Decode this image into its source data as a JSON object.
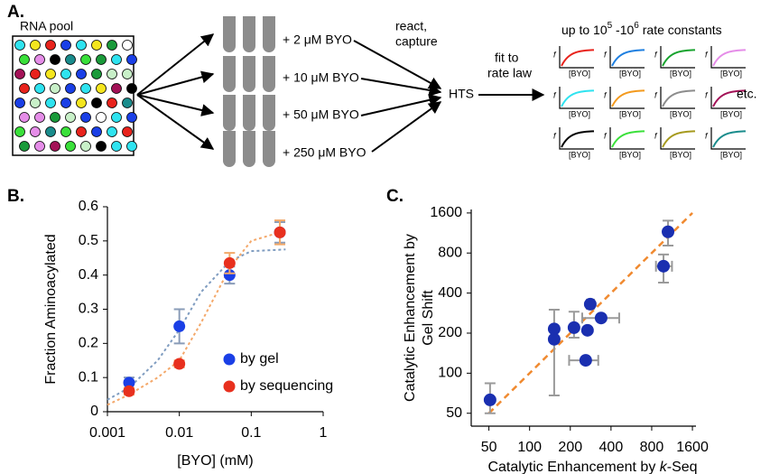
{
  "panel_a": {
    "label": "A.",
    "pool_label": "RNA pool",
    "conditions": [
      "+ 2 μM  BYO",
      "+ 10 μM  BYO",
      "+ 50 μM  BYO",
      "+ 250 μM  BYO"
    ],
    "react": [
      "react,",
      "capture"
    ],
    "hts": "HTS",
    "fit": [
      "fit to",
      "rate law"
    ],
    "headline": [
      "up to 10",
      "5",
      " -10",
      "6",
      " rate constants"
    ],
    "curve_axis_y": "f",
    "curve_axis_x": "[BYO]",
    "curve_colors": [
      "#e8231c",
      "#1e7fe0",
      "#17a32e",
      "#e58de8",
      "#2fe3f0",
      "#f39a1e",
      "#8c8c8c",
      "#a31257",
      "#000000",
      "#3ae03a",
      "#a69a1e",
      "#1a8c8c"
    ],
    "etc": "etc."
  },
  "chart_data": [
    {
      "type": "scatter",
      "panel_label": "B.",
      "x_label": "[BYO] (mM)",
      "y_label": "Fraction Aminoacylated",
      "xscale": "log",
      "xlim": [
        0.001,
        1
      ],
      "xticks": [
        0.001,
        0.01,
        0.1,
        1
      ],
      "ylim": [
        0,
        0.6
      ],
      "yticks": [
        0,
        0.1,
        0.2,
        0.3,
        0.4,
        0.5,
        0.6
      ],
      "legend": "lower-right",
      "series": [
        {
          "name": "by gel",
          "color": "#1a3fe6",
          "error_color": "#8a9cb8",
          "x": [
            0.002,
            0.01,
            0.05,
            0.25
          ],
          "values": [
            0.085,
            0.25,
            0.4,
            0.525
          ],
          "errors": [
            0.015,
            0.05,
            0.025,
            0.03
          ]
        },
        {
          "name": "by sequencing",
          "color": "#e8301e",
          "error_color": "#f2a868",
          "x": [
            0.002,
            0.01,
            0.05,
            0.25
          ],
          "values": [
            0.06,
            0.14,
            0.435,
            0.525
          ],
          "errors": [
            0.01,
            0.01,
            0.03,
            0.035
          ]
        }
      ],
      "fits": [
        {
          "color": "#7f9cc0",
          "x": [
            0.001,
            0.002,
            0.005,
            0.01,
            0.02,
            0.05,
            0.1,
            0.3
          ],
          "values": [
            0.035,
            0.07,
            0.15,
            0.24,
            0.35,
            0.44,
            0.47,
            0.475
          ]
        },
        {
          "color": "#f4a86a",
          "x": [
            0.001,
            0.002,
            0.005,
            0.01,
            0.02,
            0.05,
            0.1,
            0.3
          ],
          "values": [
            0.02,
            0.05,
            0.1,
            0.15,
            0.26,
            0.42,
            0.5,
            0.53
          ]
        }
      ]
    },
    {
      "type": "scatter",
      "panel_label": "C.",
      "x_label": [
        "Catalytic Enhancement by ",
        "k",
        "-Seq"
      ],
      "y_label": [
        "Catalytic Enhancement by",
        "Gel Shift"
      ],
      "xscale": "log",
      "yscale": "log",
      "xlim": [
        37,
        1700
      ],
      "ylim": [
        40,
        1700
      ],
      "xticks": [
        50,
        100,
        200,
        400,
        800,
        1600
      ],
      "yticks": [
        50,
        100,
        200,
        400,
        800,
        1600
      ],
      "series": [
        {
          "color": "#1a2fb0",
          "error_color": "#9a9a9a",
          "x": [
            51,
            152,
            152,
            213,
            268,
            260,
            281,
            338,
            1056,
            978
          ],
          "values": [
            63,
            215,
            180,
            220,
            210,
            125,
            330,
            260,
            1155,
            637
          ],
          "x_low": [
            null,
            null,
            null,
            null,
            null,
            196,
            265,
            245,
            null,
            860
          ],
          "x_high": [
            null,
            null,
            null,
            null,
            null,
            322,
            300,
            460,
            null,
            1130
          ],
          "y_low": [
            50,
            68,
            null,
            185,
            null,
            null,
            null,
            null,
            910,
            480
          ],
          "y_high": [
            84,
            300,
            null,
            290,
            null,
            null,
            null,
            null,
            1400,
            780
          ]
        }
      ],
      "reference": {
        "color": "#f08a30",
        "x": [
          50,
          1600
        ],
        "values": [
          50,
          1600
        ]
      }
    }
  ]
}
